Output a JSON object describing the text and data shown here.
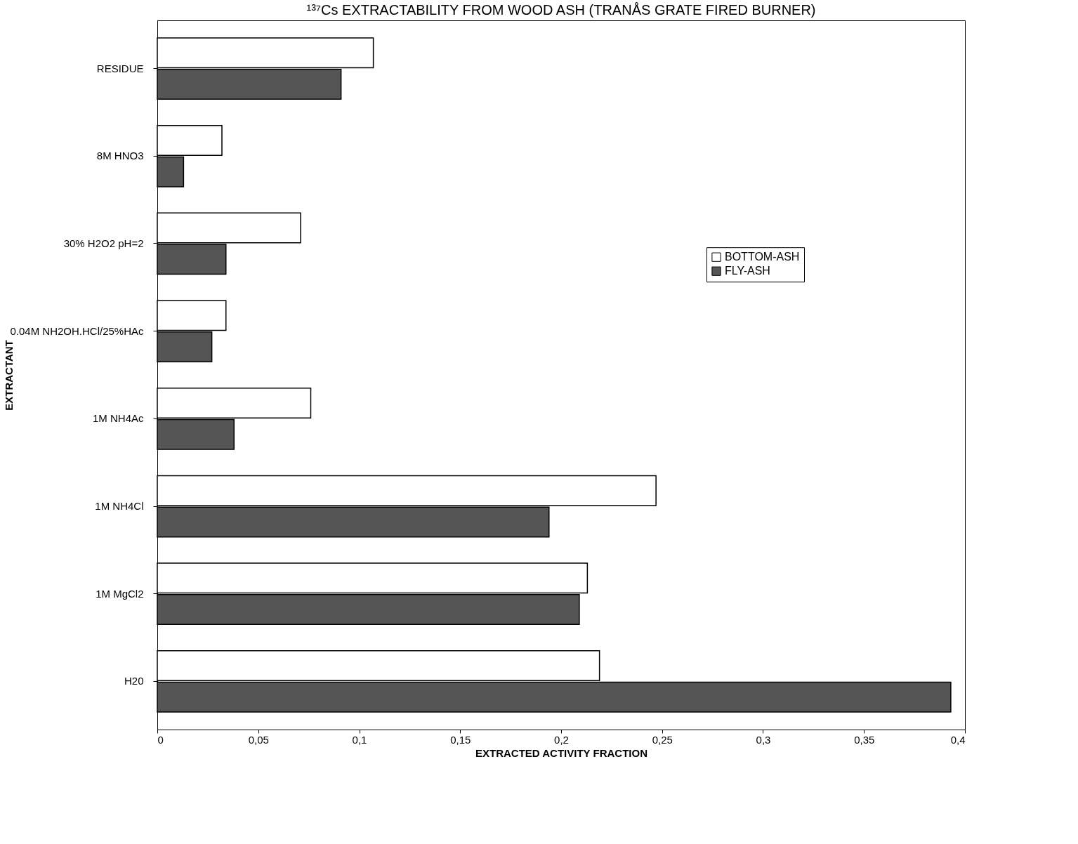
{
  "chart_data": {
    "type": "bar",
    "orientation": "horizontal",
    "title": "¹³⁷Cs EXTRACTABILITY FROM WOOD ASH (TRANÅS GRATE FIRED BURNER)",
    "xlabel": "EXTRACTED ACTIVITY FRACTION",
    "ylabel": "EXTRACTANT",
    "categories": [
      "RESIDUE",
      "8M HNO3",
      "30% H2O2 pH=2",
      "0.04M NH2OH.HCl/25%HAc",
      "1M NH4Ac",
      "1M NH4Cl",
      "1M MgCl2",
      "H20"
    ],
    "series": [
      {
        "name": "BOTTOM-ASH",
        "color": "#ffffff",
        "values": [
          0.107,
          0.032,
          0.071,
          0.034,
          0.076,
          0.247,
          0.213,
          0.219
        ]
      },
      {
        "name": "FLY-ASH",
        "color": "#555555",
        "values": [
          0.091,
          0.013,
          0.034,
          0.027,
          0.038,
          0.194,
          0.209,
          0.393
        ]
      }
    ],
    "xlim": [
      0,
      0.4
    ],
    "xticks": [
      0,
      {
        "value": 0.05,
        "label": "0,05"
      },
      {
        "value": 0.1,
        "label": "0,1"
      },
      {
        "value": 0.15,
        "label": "0,15"
      },
      {
        "value": 0.2,
        "label": "0,2"
      },
      {
        "value": 0.25,
        "label": "0,25"
      },
      {
        "value": 0.3,
        "label": "0,3"
      },
      {
        "value": 0.35,
        "label": "0,35"
      },
      {
        "value": 0.4,
        "label": "0,4"
      }
    ],
    "grid": false,
    "legend": "right"
  }
}
